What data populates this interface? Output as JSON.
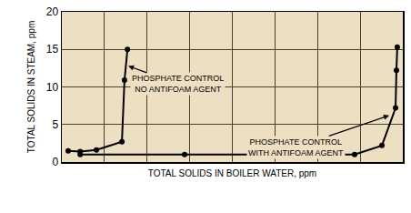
{
  "chart_data": {
    "type": "line",
    "x_label": "TOTAL SOLIDS IN BOILER WATER, ppm",
    "y_label": "TOTAL SOLIDS IN STEAM, ppm",
    "series": [
      {
        "x": [
          0.15,
          0.43,
          0.81,
          1.41,
          1.47,
          1.54
        ],
        "values": [
          1.5,
          1.4,
          1.6,
          2.7,
          10.9,
          15
        ],
        "color": "#000000",
        "marker": "circle",
        "line_style": "solid"
      },
      {
        "x": [
          0.43,
          2.88,
          4.58,
          6.87,
          7.51,
          7.83,
          7.85,
          7.87
        ],
        "values": [
          1,
          1,
          1,
          1,
          2.2,
          7.2,
          12.2,
          15.3
        ],
        "color": "#000000",
        "marker": "circle",
        "line_style": "solid"
      }
    ],
    "xlim": [
      0,
      8
    ],
    "xticks": [
      0,
      1,
      2,
      3,
      4,
      5,
      6,
      7,
      8
    ],
    "ylim": [
      0,
      20
    ],
    "yticks": [
      0,
      5,
      10,
      15,
      20
    ],
    "grid": true,
    "tick_labels": "y",
    "annotations": [
      "PHOSPHATE CONTROL\nNO ANTIFOAM AGENT",
      "PHOSPHATE CONTROL\nWITH ANTIFOAM AGENT"
    ]
  }
}
